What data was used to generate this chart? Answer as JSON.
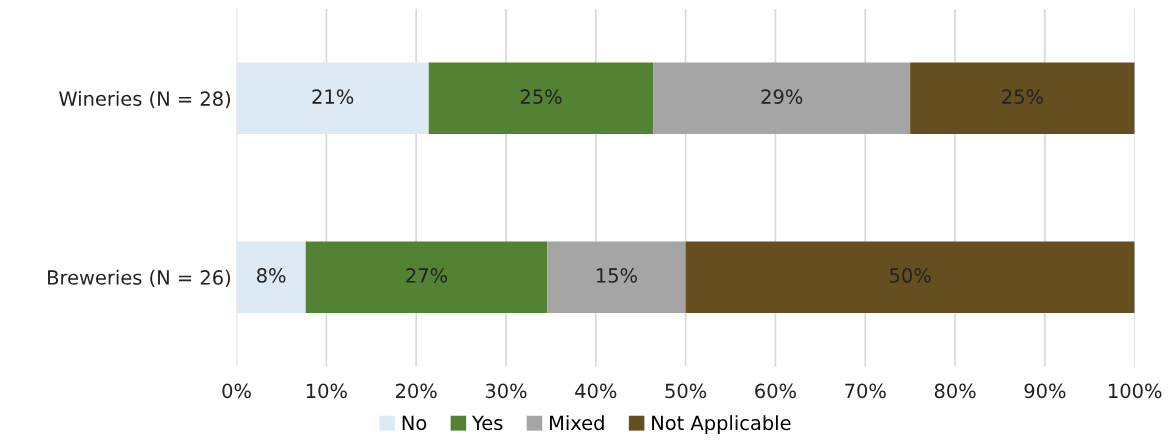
{
  "chart_data": {
    "type": "bar",
    "orientation": "horizontal",
    "stacked": true,
    "categories": [
      "Wineries (N = 28)",
      "Breweries (N = 26)"
    ],
    "series": [
      {
        "name": "No",
        "color": "#dde9f5",
        "values": [
          21.4,
          7.7
        ],
        "value_labels": [
          "21%",
          "8%"
        ]
      },
      {
        "name": "Yes",
        "color": "#548235",
        "values": [
          25.0,
          26.9
        ],
        "value_labels": [
          "25%",
          "27%"
        ]
      },
      {
        "name": "Mixed",
        "color": "#a5a5a5",
        "values": [
          28.6,
          15.4
        ],
        "value_labels": [
          "29%",
          "15%"
        ]
      },
      {
        "name": "Not Applicable",
        "color": "#654f21",
        "values": [
          25.0,
          50.0
        ],
        "value_labels": [
          "25%",
          "50%"
        ]
      }
    ],
    "xlim": [
      0,
      100
    ],
    "xticks": [
      {
        "value": 0,
        "label": "0%"
      },
      {
        "value": 10,
        "label": "10%"
      },
      {
        "value": 20,
        "label": "20%"
      },
      {
        "value": 30,
        "label": "30%"
      },
      {
        "value": 40,
        "label": "40%"
      },
      {
        "value": 50,
        "label": "50%"
      },
      {
        "value": 60,
        "label": "60%"
      },
      {
        "value": 70,
        "label": "70%"
      },
      {
        "value": 80,
        "label": "80%"
      },
      {
        "value": 90,
        "label": "90%"
      },
      {
        "value": 100,
        "label": "100%"
      }
    ],
    "grid": "x",
    "legend": "bottom"
  }
}
